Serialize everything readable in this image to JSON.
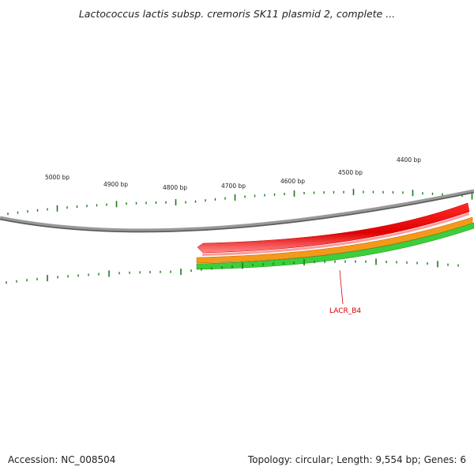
{
  "title": "Lactococcus lactis subsp. cremoris SK11 plasmid 2, complete ...",
  "footer": {
    "accession": "Accession: NC_008504",
    "topology_info": "Topology: circular; Length: 9,554 bp; Genes: 6"
  },
  "tick_labels": [
    "4400 bp",
    "4500 bp",
    "4600 bp",
    "4700 bp",
    "4800 bp",
    "4900 bp",
    "5000 bp"
  ],
  "genes": [
    {
      "label": "LACR_B4",
      "color": "#ee0000"
    }
  ],
  "colors": {
    "backbone": "#777777",
    "ticks": "#1a7a1a",
    "gene": "#ee0000",
    "orange_track": "#f08c00",
    "green_track": "#2fbf2f"
  }
}
